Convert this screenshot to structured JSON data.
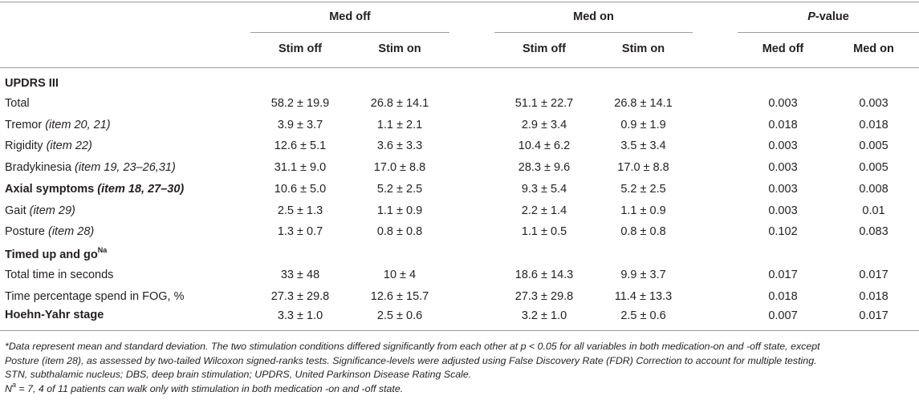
{
  "header": {
    "groups": [
      {
        "label": "Med off"
      },
      {
        "label": "Med on"
      },
      {
        "label_italic": "P",
        "label_rest": "-value"
      }
    ],
    "subheaders": [
      "Stim off",
      "Stim on",
      "Stim off",
      "Stim on",
      "Med off",
      "Med on"
    ]
  },
  "sections": {
    "updrs": "UPDRS III",
    "tug_prefix": "Timed up and go",
    "tug_sup": "Na",
    "hoehn": "Hoehn-Yahr stage"
  },
  "rows": [
    {
      "label": "Total",
      "item": "",
      "values": [
        "58.2 ± 19.9",
        "26.8 ± 14.1",
        "51.1 ± 22.7",
        "26.8 ± 14.1",
        "0.003",
        "0.003"
      ]
    },
    {
      "label": "Tremor ",
      "item": "(item 20, 21)",
      "values": [
        "3.9 ± 3.7",
        "1.1 ± 2.1",
        "2.9 ± 3.4",
        "0.9 ± 1.9",
        "0.018",
        "0.018"
      ]
    },
    {
      "label": "Rigidity ",
      "item": "(item 22)",
      "values": [
        "12.6 ± 5.1",
        "3.6 ± 3.3",
        "10.4 ± 6.2",
        "3.5 ± 3.4",
        "0.003",
        "0.005"
      ]
    },
    {
      "label": "Bradykinesia ",
      "item": "(item 19, 23–26,31)",
      "values": [
        "31.1 ± 9.0",
        "17.0 ± 8.8",
        "28.3 ± 9.6",
        "17.0 ± 8.8",
        "0.003",
        "0.005"
      ]
    },
    {
      "label": "Axial symptoms ",
      "item": "(item 18, 27–30)",
      "bold": true,
      "values": [
        "10.6 ± 5.0",
        "5.2 ± 2.5",
        "9.3 ± 5.4",
        "5.2 ± 2.5",
        "0.003",
        "0.008"
      ]
    },
    {
      "label": "Gait ",
      "item": "(item 29)",
      "values": [
        "2.5 ± 1.3",
        "1.1 ± 0.9",
        "2.2 ± 1.4",
        "1.1 ± 0.9",
        "0.003",
        "0.01"
      ]
    },
    {
      "label": "Posture ",
      "item": "(item 28)",
      "values": [
        "1.3 ± 0.7",
        "0.8 ± 0.8",
        "1.1 ± 0.5",
        "0.8 ± 0.8",
        "0.102",
        "0.083"
      ]
    },
    {
      "label": "Total time in seconds",
      "item": "",
      "values": [
        "33 ± 48",
        "10 ± 4",
        "18.6 ± 14.3",
        "9.9 ± 3.7",
        "0.017",
        "0.017"
      ]
    },
    {
      "label": "Time percentage spend in FOG, %",
      "item": "",
      "values": [
        "27.3 ± 29.8",
        "12.6 ± 15.7",
        "27.3 ± 29.8",
        "11.4 ± 13.3",
        "0.018",
        "0.018"
      ]
    },
    {
      "label": "",
      "item": "",
      "values": [
        "3.3 ± 1.0",
        "2.5 ± 0.6",
        "3.2 ± 1.0",
        "2.5 ± 0.6",
        "0.007",
        "0.017"
      ]
    }
  ],
  "footnotes": {
    "f1_line1": "*Data represent mean and standard deviation. The two stimulation conditions differed significantly from each other at p < 0.05 for all variables in both medication-on and -off state, except",
    "f1_line2": "Posture (item 28), as assessed by two-tailed Wilcoxon signed-ranks tests. Significance-levels were adjusted using False Discovery Rate (FDR) Correction to account for multiple testing.",
    "f1_line3": "STN, subthalamic nucleus; DBS, deep brain stimulation; UPDRS, United Parkinson Disease Rating Scale.",
    "f2_n": "N",
    "f2_sup": "a",
    "f2_rest": " = 7, 4 of 11 patients can walk only with stimulation in both medication -on and -off state."
  }
}
